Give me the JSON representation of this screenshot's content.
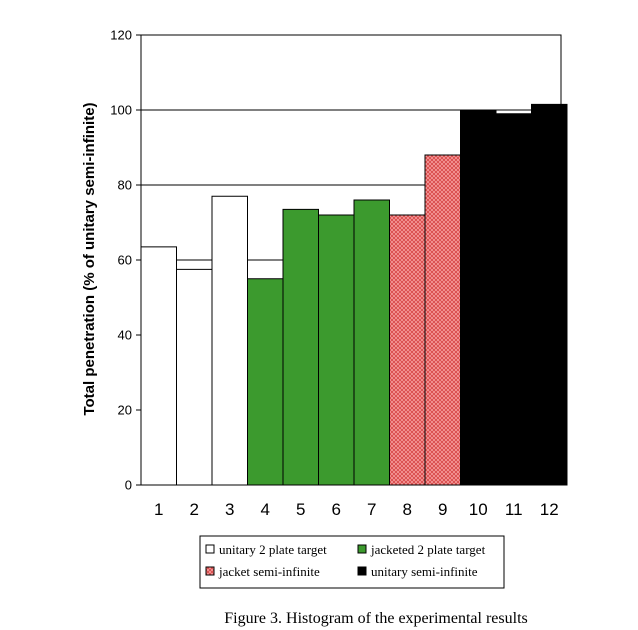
{
  "chart_data": {
    "type": "bar",
    "ylabel": "Total penetration (% of unitary semi-infinite)",
    "ylim": [
      0,
      120
    ],
    "yticks": [
      0,
      20,
      40,
      60,
      80,
      100,
      120
    ],
    "gridlines": [
      60,
      80,
      100
    ],
    "categories": [
      "1",
      "2",
      "3",
      "4",
      "5",
      "6",
      "7",
      "8",
      "9",
      "10",
      "11",
      "12"
    ],
    "bars": [
      {
        "x": "1",
        "value": 63.5,
        "group": "unitary_2_plate"
      },
      {
        "x": "2",
        "value": 57.5,
        "group": "unitary_2_plate"
      },
      {
        "x": "3",
        "value": 77,
        "group": "unitary_2_plate"
      },
      {
        "x": "4",
        "value": 55,
        "group": "jacketed_2_plate"
      },
      {
        "x": "5",
        "value": 73.5,
        "group": "jacketed_2_plate"
      },
      {
        "x": "6",
        "value": 72,
        "group": "jacketed_2_plate"
      },
      {
        "x": "7",
        "value": 76,
        "group": "jacketed_2_plate"
      },
      {
        "x": "8",
        "value": 72,
        "group": "jacket_semi_infinite"
      },
      {
        "x": "9",
        "value": 88,
        "group": "jacket_semi_infinite"
      },
      {
        "x": "10",
        "value": 100,
        "group": "unitary_semi_infinite"
      },
      {
        "x": "11",
        "value": 99,
        "group": "unitary_semi_infinite"
      },
      {
        "x": "12",
        "value": 101.5,
        "group": "unitary_semi_infinite"
      }
    ],
    "legend": {
      "placement": "bottom",
      "entries": [
        {
          "key": "unitary_2_plate",
          "label": "unitary 2 plate target",
          "color": "#ffffff"
        },
        {
          "key": "jacketed_2_plate",
          "label": "jacketed 2 plate target",
          "color": "#3c9a2e"
        },
        {
          "key": "jacket_semi_infinite",
          "label": "jacket semi-infinite",
          "color": "#f08b8b"
        },
        {
          "key": "unitary_semi_infinite",
          "label": "unitary semi-infinite",
          "color": "#000000"
        }
      ]
    }
  },
  "caption": "Figure 3. Histogram of the experimental results"
}
